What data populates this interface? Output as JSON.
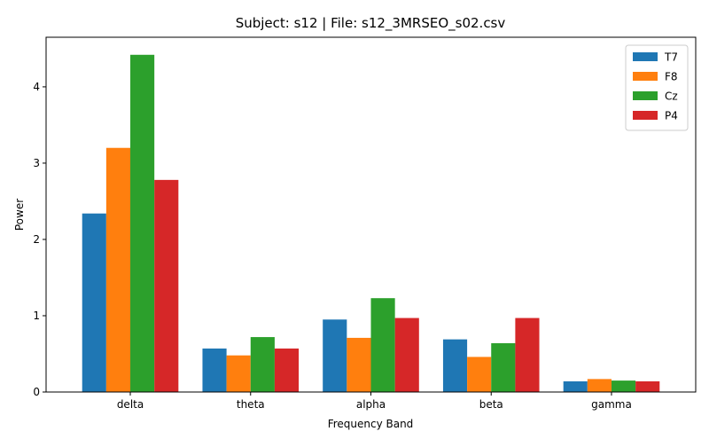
{
  "chart_data": {
    "type": "bar",
    "title": "Subject: s12 | File: s12_3MRSEO_s02.csv",
    "xlabel": "Frequency Band",
    "ylabel": "Power",
    "categories": [
      "delta",
      "theta",
      "alpha",
      "beta",
      "gamma"
    ],
    "ylim": [
      0,
      4.65
    ],
    "yticks": [
      0,
      1,
      2,
      3,
      4
    ],
    "legend_position": "top-right",
    "grid": false,
    "series": [
      {
        "name": "T7",
        "color": "#1f77b4",
        "values": [
          2.34,
          0.57,
          0.95,
          0.69,
          0.14
        ]
      },
      {
        "name": "F8",
        "color": "#ff7f0e",
        "values": [
          3.2,
          0.48,
          0.71,
          0.46,
          0.17
        ]
      },
      {
        "name": "Cz",
        "color": "#2ca02c",
        "values": [
          4.42,
          0.72,
          1.23,
          0.64,
          0.15
        ]
      },
      {
        "name": "P4",
        "color": "#d62728",
        "values": [
          2.78,
          0.57,
          0.97,
          0.97,
          0.14
        ]
      }
    ]
  }
}
